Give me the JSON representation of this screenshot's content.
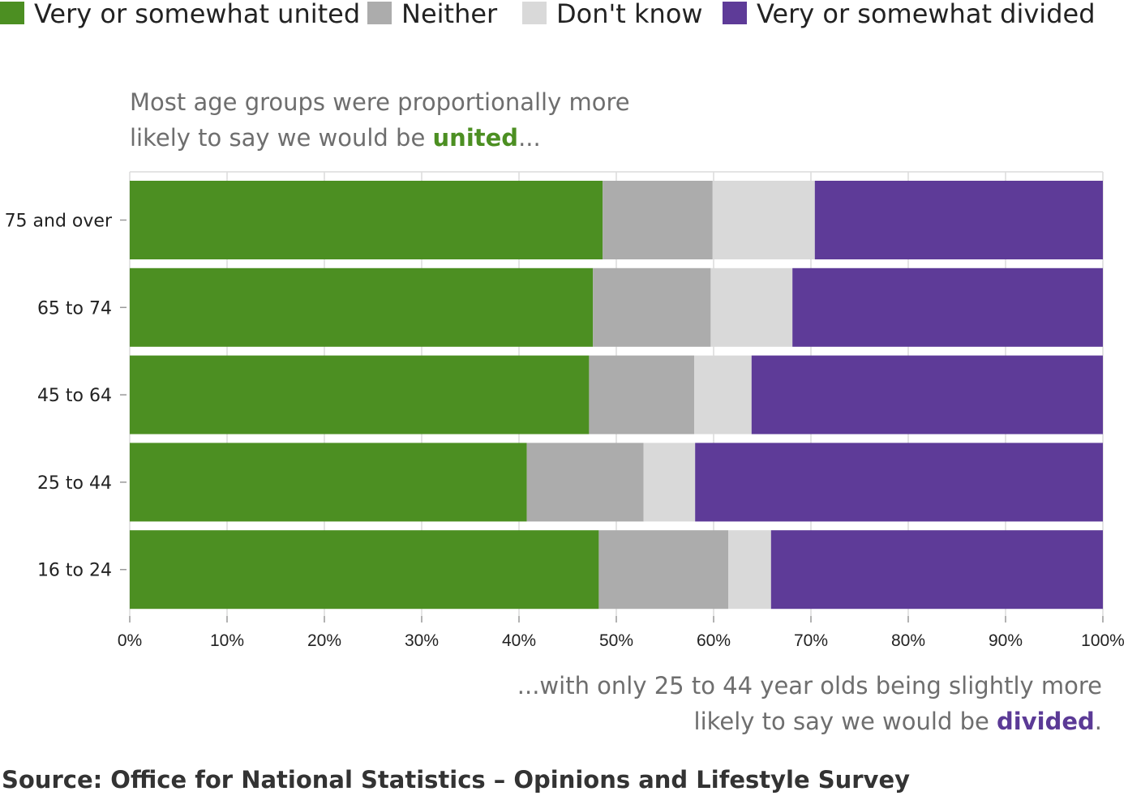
{
  "legend": [
    {
      "label": "Very or somewhat united",
      "color": "#4c8f22"
    },
    {
      "label": "Neither",
      "color": "#acacac"
    },
    {
      "label": "Don't know",
      "color": "#d9d9d9"
    },
    {
      "label": "Very or somewhat divided",
      "color": "#5e3b98"
    }
  ],
  "annotations": {
    "top_line1": "Most age groups were proportionally more",
    "top_line2_prefix": "likely to say we would be ",
    "top_line2_highlight": "united",
    "top_line2_suffix": "...",
    "bottom_line1": "...with only 25 to 44 year olds being slightly more",
    "bottom_line2_prefix": "likely to say we would be ",
    "bottom_line2_highlight": "divided",
    "bottom_line2_suffix": "."
  },
  "source": "Source: Office for National Statistics – Opinions and Lifestyle Survey",
  "chart_data": {
    "type": "bar",
    "orientation": "horizontal",
    "stacked": true,
    "categories": [
      "75 and over",
      "65 to 74",
      "45 to 64",
      "25 to 44",
      "16 to 24"
    ],
    "series": [
      {
        "name": "Very or somewhat united",
        "color": "#4c8f22",
        "values": [
          48.6,
          47.6,
          47.2,
          40.8,
          48.2
        ]
      },
      {
        "name": "Neither",
        "color": "#acacac",
        "values": [
          11.3,
          12.1,
          10.8,
          12.0,
          13.3
        ]
      },
      {
        "name": "Don't know",
        "color": "#d9d9d9",
        "values": [
          10.5,
          8.4,
          5.9,
          5.3,
          4.4
        ]
      },
      {
        "name": "Very or somewhat divided",
        "color": "#5e3b98",
        "values": [
          29.6,
          31.9,
          36.1,
          41.9,
          34.1
        ]
      }
    ],
    "xlim": [
      0,
      100
    ],
    "xticks": [
      "0%",
      "10%",
      "20%",
      "30%",
      "40%",
      "50%",
      "60%",
      "70%",
      "80%",
      "90%",
      "100%"
    ],
    "grid": true,
    "legend_position": "top"
  }
}
